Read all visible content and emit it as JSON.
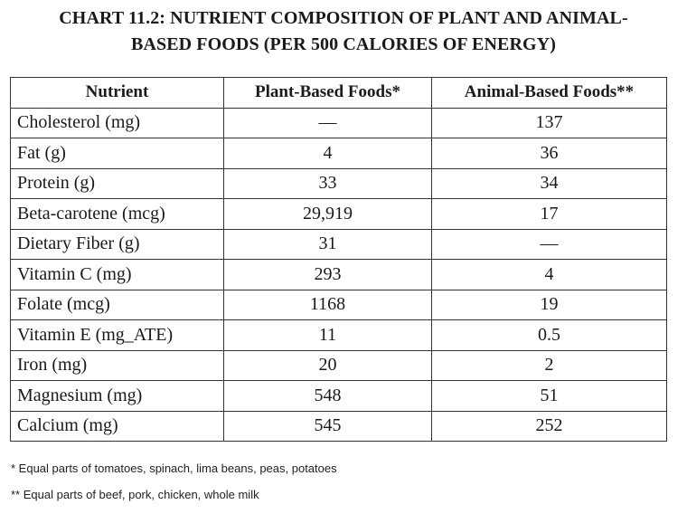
{
  "title": {
    "line1": "CHART 11.2: NUTRIENT COMPOSITION OF PLANT AND ANIMAL-",
    "line2": "BASED FOODS (PER 500 CALORIES OF ENERGY)"
  },
  "table": {
    "headers": [
      "Nutrient",
      "Plant-Based Foods*",
      "Animal-Based Foods**"
    ],
    "rows": [
      [
        "Cholesterol (mg)",
        "—",
        "137"
      ],
      [
        "Fat (g)",
        "4",
        "36"
      ],
      [
        "Protein (g)",
        "33",
        "34"
      ],
      [
        "Beta-carotene (mcg)",
        "29,919",
        "17"
      ],
      [
        "Dietary Fiber (g)",
        "31",
        "—"
      ],
      [
        "Vitamin C (mg)",
        "293",
        "4"
      ],
      [
        "Folate (mcg)",
        "1168",
        "19"
      ],
      [
        "Vitamin E (mg_ATE)",
        "11",
        "0.5"
      ],
      [
        "Iron (mg)",
        "20",
        "2"
      ],
      [
        "Magnesium (mg)",
        "548",
        "51"
      ],
      [
        "Calcium (mg)",
        "545",
        "252"
      ]
    ]
  },
  "footnotes": {
    "plant": "* Equal parts of tomatoes, spinach, lima beans, peas, potatoes",
    "animal": "** Equal parts of beef, pork, chicken, whole milk"
  }
}
